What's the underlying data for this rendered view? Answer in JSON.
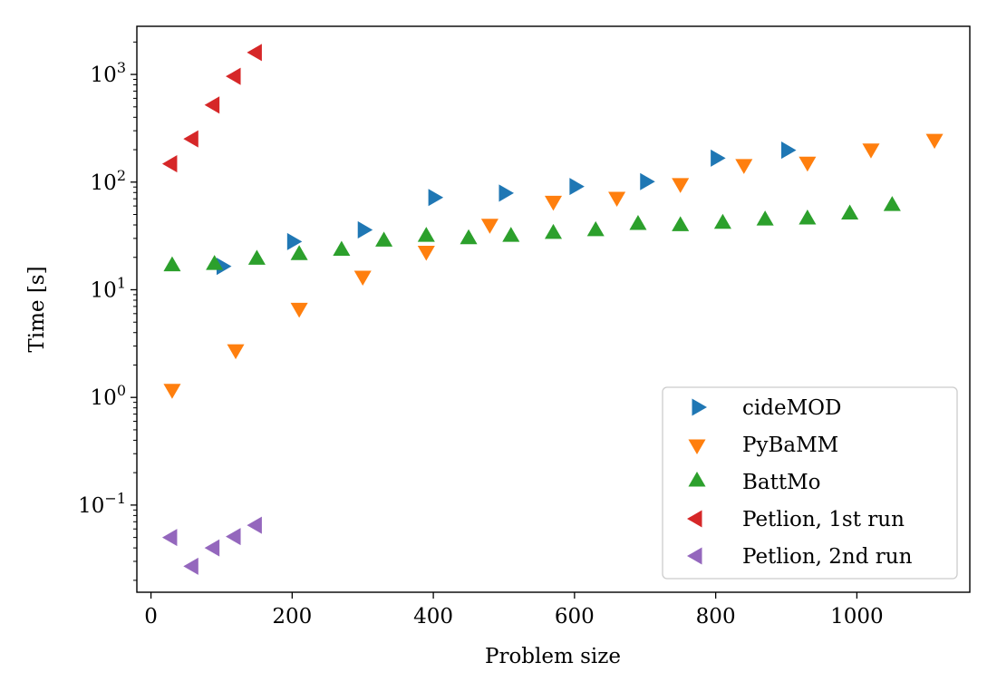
{
  "chart_data": {
    "type": "scatter",
    "xlabel": "Problem size",
    "ylabel": "Time [s]",
    "xlim": [
      -20,
      1160
    ],
    "ylim": [
      0.0155,
      2800
    ],
    "yscale": "log",
    "grid": false,
    "legend_position": "lower-right",
    "x_ticks": [
      0,
      200,
      400,
      600,
      800,
      1000
    ],
    "y_ticks": [
      {
        "value": 0.1,
        "base": "10",
        "exp": "−1"
      },
      {
        "value": 1,
        "base": "10",
        "exp": "0"
      },
      {
        "value": 10,
        "base": "10",
        "exp": "1"
      },
      {
        "value": 100,
        "base": "10",
        "exp": "2"
      },
      {
        "value": 1000,
        "base": "10",
        "exp": "3"
      }
    ],
    "series": [
      {
        "name": "cideMOD",
        "marker": "triangle-right",
        "color": "#1f77b4",
        "points": [
          {
            "x": 100,
            "y": 16.5
          },
          {
            "x": 200,
            "y": 28
          },
          {
            "x": 300,
            "y": 36
          },
          {
            "x": 400,
            "y": 72
          },
          {
            "x": 500,
            "y": 79
          },
          {
            "x": 600,
            "y": 91
          },
          {
            "x": 700,
            "y": 101
          },
          {
            "x": 800,
            "y": 167
          },
          {
            "x": 900,
            "y": 198
          }
        ]
      },
      {
        "name": "PyBaMM",
        "marker": "triangle-down",
        "color": "#ff7f0e",
        "points": [
          {
            "x": 30,
            "y": 1.2
          },
          {
            "x": 120,
            "y": 2.8
          },
          {
            "x": 210,
            "y": 6.8
          },
          {
            "x": 300,
            "y": 13.5
          },
          {
            "x": 390,
            "y": 23
          },
          {
            "x": 480,
            "y": 41
          },
          {
            "x": 570,
            "y": 67
          },
          {
            "x": 660,
            "y": 73
          },
          {
            "x": 750,
            "y": 98
          },
          {
            "x": 840,
            "y": 147
          },
          {
            "x": 930,
            "y": 155
          },
          {
            "x": 1020,
            "y": 205
          },
          {
            "x": 1110,
            "y": 252
          }
        ]
      },
      {
        "name": "BattMo",
        "marker": "triangle-up",
        "color": "#2ca02c",
        "points": [
          {
            "x": 30,
            "y": 16.5
          },
          {
            "x": 90,
            "y": 17
          },
          {
            "x": 150,
            "y": 19
          },
          {
            "x": 210,
            "y": 21
          },
          {
            "x": 270,
            "y": 23
          },
          {
            "x": 330,
            "y": 28
          },
          {
            "x": 390,
            "y": 31
          },
          {
            "x": 450,
            "y": 29.5
          },
          {
            "x": 510,
            "y": 31
          },
          {
            "x": 570,
            "y": 33
          },
          {
            "x": 630,
            "y": 35
          },
          {
            "x": 690,
            "y": 40
          },
          {
            "x": 750,
            "y": 39
          },
          {
            "x": 810,
            "y": 41
          },
          {
            "x": 870,
            "y": 44
          },
          {
            "x": 930,
            "y": 45
          },
          {
            "x": 990,
            "y": 50
          },
          {
            "x": 1050,
            "y": 60
          }
        ]
      },
      {
        "name": "Petlion, 1st run",
        "marker": "triangle-left",
        "color": "#d62728",
        "points": [
          {
            "x": 30,
            "y": 148
          },
          {
            "x": 60,
            "y": 252
          },
          {
            "x": 90,
            "y": 520
          },
          {
            "x": 120,
            "y": 960
          },
          {
            "x": 150,
            "y": 1600
          }
        ]
      },
      {
        "name": "Petlion, 2nd run",
        "marker": "triangle-left",
        "color": "#9467bd",
        "points": [
          {
            "x": 30,
            "y": 0.05
          },
          {
            "x": 60,
            "y": 0.027
          },
          {
            "x": 90,
            "y": 0.04
          },
          {
            "x": 120,
            "y": 0.051
          },
          {
            "x": 150,
            "y": 0.065
          }
        ]
      }
    ]
  }
}
